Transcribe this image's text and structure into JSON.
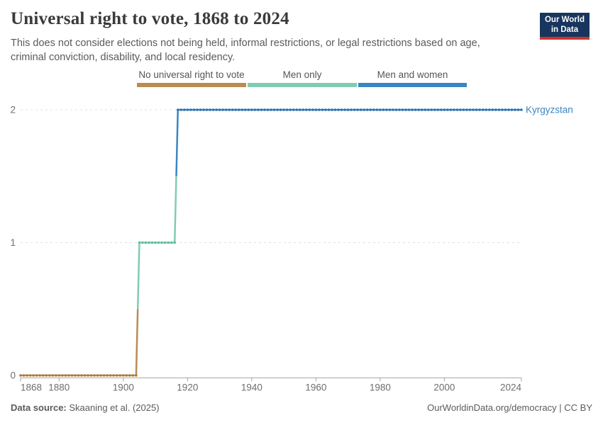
{
  "header": {
    "title": "Universal right to vote, 1868 to 2024",
    "subtitle": "This does not consider elections not being held, informal restrictions, or legal restrictions based on age,\ncriminal conviction, disability, and local residency."
  },
  "logo": {
    "line1": "Our World",
    "line2": "in Data",
    "bg_color": "#18355E",
    "bar_color": "#CE352C"
  },
  "legend": {
    "items": [
      {
        "label": "No universal right to vote",
        "color": "#BA8B52"
      },
      {
        "label": "Men only",
        "color": "#80CCB2"
      },
      {
        "label": "Men and women",
        "color": "#3A86C2"
      }
    ]
  },
  "chart_data": {
    "type": "line",
    "title": "Universal right to vote, 1868 to 2024",
    "xlabel": "",
    "ylabel": "",
    "x_range": [
      1868,
      2024
    ],
    "y_range": [
      0,
      2
    ],
    "x_ticks": [
      1868,
      1880,
      1900,
      1920,
      1940,
      1960,
      1980,
      2000,
      2024
    ],
    "y_ticks": [
      0,
      1,
      2
    ],
    "grid": "horizontal-dashed",
    "legend_position": "top",
    "entity_label": "Kyrgyzstan",
    "entity_color": "#3A86C2",
    "value_labels": {
      "0": "No universal right to vote",
      "1": "Men only",
      "2": "Men and women"
    },
    "series": [
      {
        "name": "Kyrgyzstan",
        "step_segments": [
          {
            "label": "No universal right to vote",
            "value": 0,
            "from": 1868,
            "to": 1904,
            "color": "#BA8B52",
            "dot_color": "#A87938"
          },
          {
            "label": "Men only",
            "value": 1,
            "from": 1905,
            "to": 1916,
            "color": "#80CCB2",
            "dot_color": "#5EBEA0"
          },
          {
            "label": "Men and women",
            "value": 2,
            "from": 1917,
            "to": 2024,
            "color": "#3A86C2",
            "dot_color": "#2C71AD"
          }
        ]
      }
    ],
    "axis_color": "#a8a8a8",
    "grid_color": "#e0e0e0",
    "tick_label_color": "#6e6e6e"
  },
  "footer": {
    "source_label": "Data source:",
    "source_value": " Skaaning et al. (2025)",
    "right": "OurWorldinData.org/democracy | CC BY"
  }
}
